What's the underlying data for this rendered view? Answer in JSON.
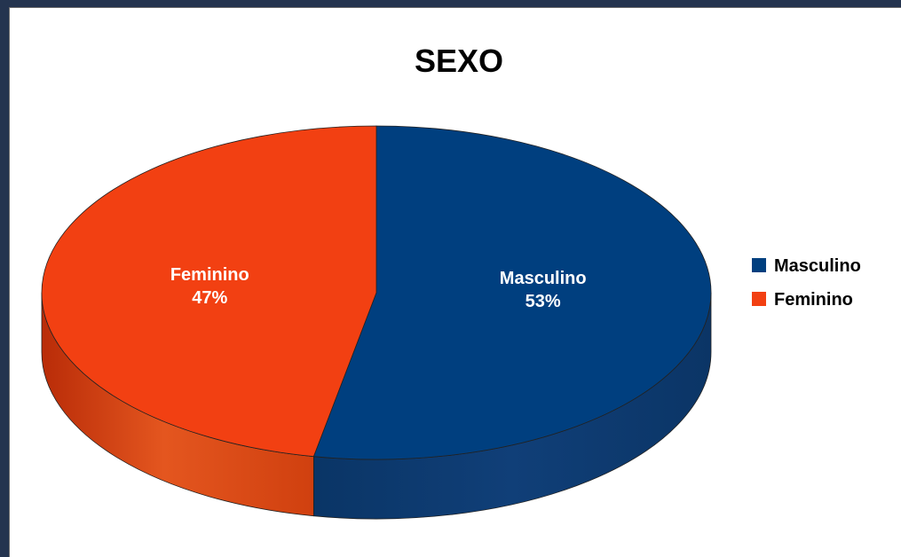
{
  "chart_data": {
    "type": "pie",
    "title": "SEXO",
    "legend_position": "right",
    "categories": [
      "Masculino",
      "Feminino"
    ],
    "values": [
      53,
      47
    ],
    "data_labels": [
      {
        "name": "Masculino",
        "value": "53%"
      },
      {
        "name": "Feminino",
        "value": "47%"
      }
    ],
    "colors": [
      "#003f7f",
      "#f24012"
    ],
    "side_colors": [
      "#002e5e",
      "#c2320c"
    ]
  }
}
